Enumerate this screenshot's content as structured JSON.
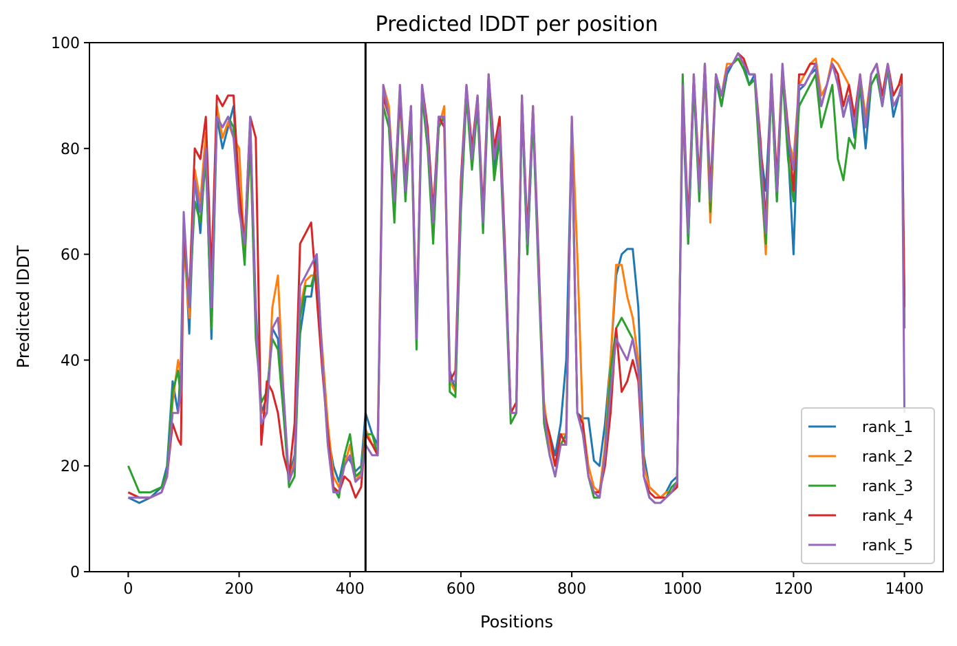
{
  "chart_data": {
    "type": "line",
    "title": "Predicted lDDT per position",
    "xlabel": "Positions",
    "ylabel": "Predicted lDDT",
    "xlim": [
      -70,
      1470
    ],
    "ylim": [
      0,
      100
    ],
    "xticks": [
      0,
      200,
      400,
      600,
      800,
      1000,
      1200,
      1400
    ],
    "yticks": [
      0,
      20,
      40,
      60,
      80,
      100
    ],
    "xtick_labels": [
      "0",
      "200",
      "400",
      "600",
      "800",
      "1000",
      "1200",
      "1400"
    ],
    "ytick_labels": [
      "0",
      "20",
      "40",
      "60",
      "80",
      "100"
    ],
    "vline_x": 428,
    "grid": false,
    "legend_position": "lower-right",
    "x": [
      0,
      20,
      40,
      60,
      70,
      80,
      90,
      95,
      100,
      110,
      120,
      130,
      140,
      150,
      160,
      170,
      180,
      190,
      200,
      210,
      220,
      230,
      240,
      250,
      260,
      270,
      280,
      290,
      300,
      310,
      320,
      330,
      340,
      350,
      360,
      370,
      380,
      390,
      400,
      410,
      420,
      428,
      440,
      450,
      460,
      470,
      480,
      490,
      500,
      510,
      520,
      530,
      540,
      550,
      560,
      570,
      580,
      590,
      600,
      610,
      620,
      630,
      640,
      650,
      660,
      670,
      680,
      690,
      700,
      710,
      720,
      730,
      740,
      750,
      760,
      770,
      780,
      790,
      800,
      810,
      820,
      830,
      840,
      850,
      860,
      870,
      880,
      890,
      900,
      910,
      920,
      930,
      940,
      950,
      960,
      970,
      980,
      990,
      1000,
      1010,
      1020,
      1030,
      1040,
      1050,
      1060,
      1070,
      1080,
      1090,
      1100,
      1110,
      1120,
      1130,
      1140,
      1150,
      1160,
      1170,
      1180,
      1190,
      1200,
      1210,
      1220,
      1230,
      1240,
      1250,
      1260,
      1270,
      1280,
      1290,
      1300,
      1310,
      1320,
      1330,
      1340,
      1350,
      1360,
      1370,
      1380,
      1390,
      1395,
      1400
    ],
    "series": [
      {
        "name": "rank_1",
        "color": "#1f77b4",
        "values": [
          14,
          13,
          14,
          16,
          20,
          36,
          30,
          40,
          66,
          45,
          75,
          64,
          80,
          44,
          86,
          80,
          84,
          88,
          70,
          62,
          85,
          50,
          30,
          33,
          46,
          44,
          30,
          18,
          22,
          45,
          52,
          52,
          60,
          40,
          26,
          20,
          17,
          22,
          21,
          19,
          20,
          30,
          26,
          24,
          90,
          86,
          68,
          90,
          72,
          88,
          44,
          91,
          82,
          66,
          86,
          86,
          38,
          34,
          70,
          91,
          78,
          88,
          66,
          92,
          76,
          84,
          58,
          30,
          32,
          88,
          60,
          86,
          58,
          30,
          26,
          22,
          28,
          40,
          84,
          30,
          29,
          29,
          21,
          20,
          28,
          40,
          56,
          60,
          61,
          61,
          50,
          22,
          16,
          15,
          14,
          15,
          17,
          18,
          88,
          62,
          92,
          72,
          94,
          70,
          93,
          88,
          94,
          96,
          97,
          96,
          92,
          94,
          80,
          72,
          92,
          70,
          95,
          80,
          60,
          91,
          92,
          94,
          95,
          88,
          92,
          96,
          94,
          86,
          90,
          82,
          92,
          80,
          92,
          94,
          88,
          95,
          86,
          90,
          90,
          52
        ]
      },
      {
        "name": "rank_2",
        "color": "#ff7f0e",
        "values": [
          15,
          14,
          14,
          15,
          18,
          32,
          40,
          37,
          62,
          48,
          76,
          70,
          83,
          48,
          88,
          82,
          85,
          82,
          80,
          60,
          80,
          48,
          30,
          30,
          50,
          56,
          34,
          17,
          21,
          50,
          55,
          56,
          56,
          42,
          28,
          18,
          16,
          20,
          24,
          17,
          19,
          27,
          24,
          24,
          92,
          88,
          70,
          92,
          74,
          86,
          44,
          92,
          80,
          66,
          84,
          88,
          36,
          34,
          72,
          92,
          78,
          90,
          66,
          94,
          78,
          84,
          58,
          30,
          30,
          90,
          62,
          88,
          58,
          32,
          24,
          20,
          26,
          26,
          86,
          60,
          28,
          20,
          16,
          15,
          24,
          40,
          58,
          58,
          52,
          48,
          40,
          20,
          16,
          15,
          14,
          15,
          15,
          17,
          90,
          64,
          94,
          72,
          95,
          66,
          94,
          90,
          96,
          96,
          97,
          96,
          94,
          94,
          78,
          60,
          94,
          74,
          96,
          82,
          78,
          92,
          94,
          96,
          97,
          90,
          92,
          97,
          96,
          94,
          92,
          84,
          94,
          86,
          94,
          96,
          90,
          96,
          90,
          92,
          92,
          46
        ]
      },
      {
        "name": "rank_3",
        "color": "#2ca02c",
        "values": [
          20,
          15,
          15,
          16,
          19,
          34,
          38,
          32,
          64,
          50,
          70,
          66,
          78,
          46,
          86,
          84,
          86,
          84,
          70,
          58,
          82,
          44,
          32,
          34,
          44,
          42,
          30,
          16,
          18,
          48,
          54,
          54,
          58,
          40,
          24,
          16,
          14,
          22,
          26,
          18,
          19,
          26,
          26,
          22,
          88,
          84,
          66,
          90,
          70,
          86,
          42,
          90,
          80,
          62,
          84,
          86,
          34,
          33,
          68,
          90,
          76,
          88,
          64,
          92,
          74,
          82,
          56,
          28,
          30,
          88,
          60,
          86,
          56,
          28,
          22,
          18,
          24,
          26,
          84,
          30,
          26,
          18,
          14,
          14,
          22,
          38,
          46,
          48,
          46,
          44,
          38,
          18,
          14,
          13,
          13,
          14,
          16,
          17,
          94,
          62,
          92,
          70,
          96,
          68,
          94,
          88,
          95,
          96,
          97,
          95,
          92,
          93,
          76,
          62,
          92,
          70,
          94,
          78,
          70,
          88,
          90,
          92,
          94,
          84,
          88,
          92,
          78,
          74,
          82,
          80,
          92,
          84,
          92,
          94,
          88,
          95,
          88,
          90,
          92,
          46
        ]
      },
      {
        "name": "rank_4",
        "color": "#d62728",
        "values": [
          15,
          14,
          14,
          15,
          18,
          28,
          25,
          24,
          64,
          52,
          80,
          78,
          86,
          56,
          90,
          88,
          90,
          90,
          72,
          62,
          86,
          82,
          24,
          36,
          34,
          30,
          22,
          18,
          28,
          62,
          64,
          66,
          52,
          38,
          26,
          16,
          15,
          18,
          17,
          14,
          16,
          26,
          24,
          22,
          90,
          86,
          72,
          90,
          74,
          88,
          46,
          92,
          84,
          68,
          86,
          84,
          36,
          38,
          74,
          92,
          80,
          90,
          68,
          94,
          80,
          86,
          60,
          30,
          32,
          90,
          64,
          88,
          60,
          30,
          26,
          20,
          26,
          24,
          86,
          30,
          28,
          18,
          15,
          15,
          20,
          30,
          46,
          34,
          36,
          40,
          36,
          18,
          15,
          14,
          14,
          14,
          15,
          16,
          92,
          66,
          94,
          74,
          96,
          72,
          94,
          90,
          95,
          96,
          98,
          97,
          94,
          94,
          82,
          66,
          94,
          74,
          95,
          84,
          72,
          94,
          94,
          96,
          96,
          88,
          92,
          96,
          94,
          88,
          92,
          86,
          94,
          84,
          94,
          96,
          90,
          96,
          90,
          92,
          94,
          50
        ]
      },
      {
        "name": "rank_5",
        "color": "#9467bd",
        "values": [
          14,
          14,
          14,
          15,
          18,
          30,
          30,
          34,
          68,
          50,
          74,
          68,
          80,
          50,
          86,
          84,
          86,
          82,
          68,
          62,
          86,
          48,
          28,
          30,
          46,
          48,
          34,
          17,
          20,
          54,
          56,
          58,
          60,
          40,
          24,
          15,
          15,
          20,
          22,
          17,
          18,
          24,
          22,
          22,
          92,
          86,
          70,
          92,
          72,
          88,
          44,
          92,
          82,
          66,
          86,
          86,
          36,
          36,
          72,
          92,
          78,
          90,
          66,
          94,
          78,
          84,
          58,
          30,
          30,
          90,
          62,
          88,
          58,
          30,
          22,
          18,
          24,
          24,
          86,
          30,
          26,
          18,
          15,
          14,
          22,
          34,
          44,
          42,
          40,
          44,
          38,
          18,
          14,
          13,
          13,
          14,
          15,
          17,
          92,
          64,
          94,
          72,
          96,
          70,
          94,
          90,
          95,
          96,
          98,
          96,
          94,
          94,
          80,
          64,
          94,
          72,
          96,
          82,
          76,
          92,
          92,
          94,
          96,
          88,
          92,
          96,
          92,
          86,
          90,
          84,
          94,
          84,
          94,
          96,
          88,
          96,
          88,
          90,
          92,
          30
        ]
      }
    ]
  }
}
